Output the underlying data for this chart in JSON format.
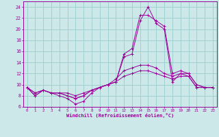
{
  "xlabel": "Windchill (Refroidissement éolien,°C)",
  "background_color": "#cce8e8",
  "grid_color": "#99cccc",
  "line_color": "#990099",
  "x_hours": [
    0,
    1,
    2,
    3,
    4,
    5,
    6,
    7,
    8,
    9,
    10,
    11,
    12,
    13,
    14,
    15,
    16,
    17,
    18,
    19,
    20,
    21,
    22,
    23
  ],
  "series": [
    [
      9.5,
      8.0,
      9.0,
      8.5,
      8.0,
      7.5,
      6.5,
      7.0,
      8.5,
      9.5,
      10.0,
      10.5,
      15.0,
      15.5,
      21.5,
      24.0,
      21.0,
      20.0,
      10.5,
      12.0,
      11.5,
      9.5,
      9.5,
      9.5
    ],
    [
      9.5,
      8.0,
      9.0,
      8.5,
      8.5,
      8.0,
      7.5,
      8.0,
      9.0,
      9.5,
      10.0,
      10.5,
      15.5,
      16.5,
      22.5,
      22.5,
      21.5,
      20.5,
      12.0,
      12.5,
      12.0,
      10.0,
      9.5,
      9.5
    ],
    [
      9.5,
      8.5,
      9.0,
      8.5,
      8.5,
      8.0,
      7.5,
      8.0,
      9.0,
      9.5,
      10.0,
      11.0,
      12.5,
      13.0,
      13.5,
      13.5,
      13.0,
      12.0,
      11.5,
      12.0,
      12.0,
      10.0,
      9.5,
      9.5
    ],
    [
      9.5,
      8.5,
      9.0,
      8.5,
      8.5,
      8.5,
      8.0,
      8.5,
      9.0,
      9.5,
      10.0,
      10.5,
      11.5,
      12.0,
      12.5,
      12.5,
      12.0,
      11.5,
      11.0,
      11.5,
      11.5,
      9.5,
      9.5,
      9.5
    ]
  ],
  "ylim": [
    6,
    25
  ],
  "yticks": [
    6,
    8,
    10,
    12,
    14,
    16,
    18,
    20,
    22,
    24
  ],
  "xticks": [
    0,
    1,
    2,
    3,
    4,
    5,
    6,
    7,
    8,
    9,
    10,
    11,
    12,
    13,
    14,
    15,
    16,
    17,
    18,
    19,
    20,
    21,
    22,
    23
  ]
}
